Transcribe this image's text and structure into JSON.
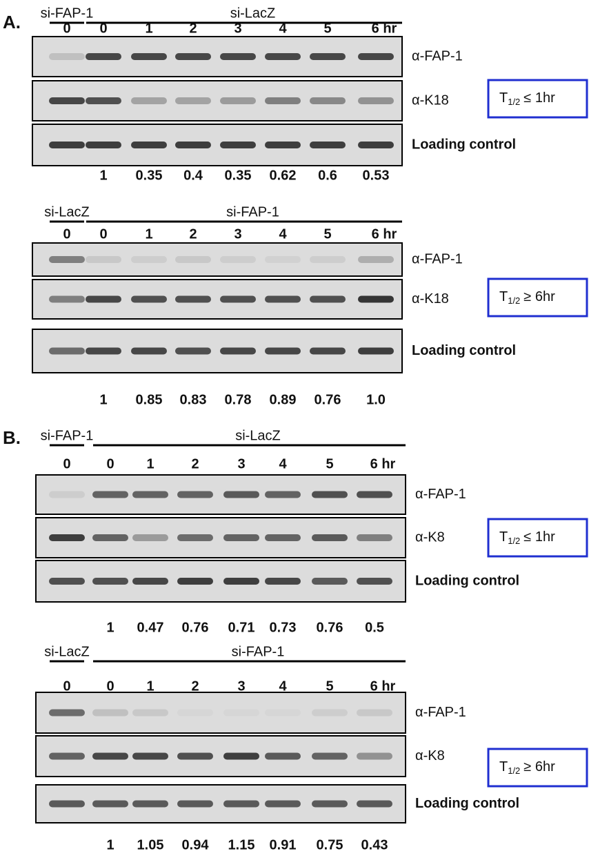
{
  "panels": [
    {
      "label": "A.",
      "blots": [
        {
          "control": "si-FAP-1",
          "treatment": "si-LacZ",
          "lanes": [
            "0",
            "0",
            "1",
            "2",
            "3",
            "4",
            "5",
            "6 hr"
          ],
          "rows": [
            "α-FAP-1",
            "α-K18",
            "Loading control"
          ],
          "half_life": {
            "symbol": "T",
            "sub": "1/2",
            "text": "≤ 1hr"
          },
          "quantification": [
            "1",
            "0.35",
            "0.4",
            "0.35",
            "0.62",
            "0.6",
            "0.53"
          ]
        },
        {
          "control": "si-LacZ",
          "treatment": "si-FAP-1",
          "lanes": [
            "0",
            "0",
            "1",
            "2",
            "3",
            "4",
            "5",
            "6 hr"
          ],
          "rows": [
            "α-FAP-1",
            "α-K18",
            "Loading control"
          ],
          "half_life": {
            "symbol": "T",
            "sub": "1/2",
            "text": "≥ 6hr"
          },
          "quantification": [
            "1",
            "0.85",
            "0.83",
            "0.78",
            "0.89",
            "0.76",
            "1.0"
          ]
        }
      ]
    },
    {
      "label": "B.",
      "blots": [
        {
          "control": "si-FAP-1",
          "treatment": "si-LacZ",
          "lanes": [
            "0",
            "0",
            "1",
            "2",
            "3",
            "4",
            "5",
            "6 hr"
          ],
          "rows": [
            "α-FAP-1",
            "α-K8",
            "Loading control"
          ],
          "half_life": {
            "symbol": "T",
            "sub": "1/2",
            "text": "≤ 1hr"
          },
          "quantification": [
            "1",
            "0.47",
            "0.76",
            "0.71",
            "0.73",
            "0.76",
            "0.5"
          ]
        },
        {
          "control": "si-LacZ",
          "treatment": "si-FAP-1",
          "lanes": [
            "0",
            "0",
            "1",
            "2",
            "3",
            "4",
            "5",
            "6 hr"
          ],
          "rows": [
            "α-FAP-1",
            "α-K8",
            "Loading control"
          ],
          "half_life": {
            "symbol": "T",
            "sub": "1/2",
            "text": "≥ 6hr"
          },
          "quantification": [
            "1",
            "1.05",
            "0.94",
            "1.15",
            "0.91",
            "0.75",
            "0.43"
          ]
        }
      ]
    }
  ]
}
